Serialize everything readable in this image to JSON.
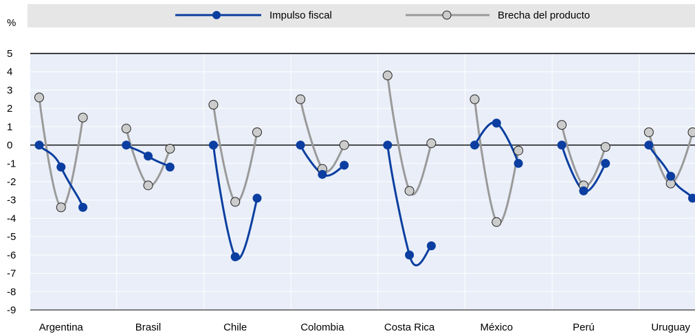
{
  "chart_data": {
    "type": "line",
    "ylabel": "%",
    "ylim": [
      -9,
      5
    ],
    "yticks": [
      "5",
      "4",
      "3",
      "2",
      "1",
      "0",
      "-1",
      "-2",
      "-3",
      "-4",
      "-5",
      "-6",
      "-7",
      "-8",
      "-9"
    ],
    "grid": true,
    "legend_position": "top",
    "categories": [
      "Argentina",
      "Brasil",
      "Chile",
      "Colombia",
      "Costa Rica",
      "México",
      "Perú",
      "Uruguay"
    ],
    "series": [
      {
        "name": "Impulso fiscal",
        "color": "#0b3ea0",
        "marker": "filled-circle",
        "values": [
          [
            0,
            -1.2,
            -3.4
          ],
          [
            0,
            -0.6,
            -1.2
          ],
          [
            0,
            -6.1,
            -2.9
          ],
          [
            0,
            -1.6,
            -1.1
          ],
          [
            0,
            -6.0,
            -5.5
          ],
          [
            0,
            1.2,
            -1.0
          ],
          [
            0,
            -2.5,
            -1.0
          ],
          [
            0,
            -1.7,
            -2.9
          ]
        ]
      },
      {
        "name": "Brecha del producto",
        "color": "#9a9a9a",
        "marker": "open-circle",
        "values": [
          [
            2.6,
            -3.4,
            1.5
          ],
          [
            0.9,
            -2.2,
            -0.2
          ],
          [
            2.2,
            -3.1,
            0.7
          ],
          [
            2.5,
            -1.3,
            0.0
          ],
          [
            3.8,
            -2.5,
            0.1
          ],
          [
            2.5,
            -4.2,
            -0.3
          ],
          [
            1.1,
            -2.2,
            -0.1
          ],
          [
            0.7,
            -2.1,
            0.7
          ]
        ]
      }
    ]
  },
  "colors": {
    "plot_bg": "#e9eef8",
    "legend_bg": "#e6e6e6",
    "grid": "#ffffff"
  }
}
